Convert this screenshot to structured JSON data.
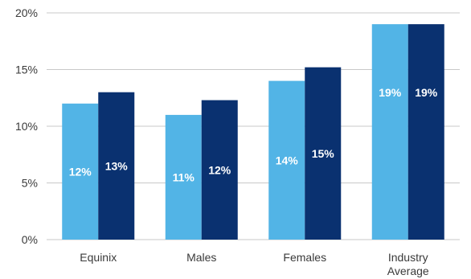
{
  "chart_data": {
    "type": "bar",
    "categories": [
      [
        "Equinix"
      ],
      [
        "Males"
      ],
      [
        "Females"
      ],
      [
        "Industry",
        "Average"
      ]
    ],
    "series": [
      {
        "name": "",
        "color": "#52b4e6",
        "values": [
          12,
          11,
          14,
          19
        ],
        "labels": [
          "12%",
          "11%",
          "14%",
          "19%"
        ]
      },
      {
        "name": "",
        "color": "#0a3170",
        "values": [
          13,
          12.3,
          15.2,
          19
        ],
        "labels": [
          "13%",
          "12%",
          "15%",
          "19%"
        ]
      }
    ],
    "ylim": [
      0,
      20
    ],
    "yticks": [
      0,
      5,
      10,
      15,
      20
    ],
    "ytick_labels": [
      "0%",
      "5%",
      "10%",
      "15%",
      "20%"
    ],
    "grid": true,
    "title": "",
    "xlabel": "",
    "ylabel": ""
  }
}
